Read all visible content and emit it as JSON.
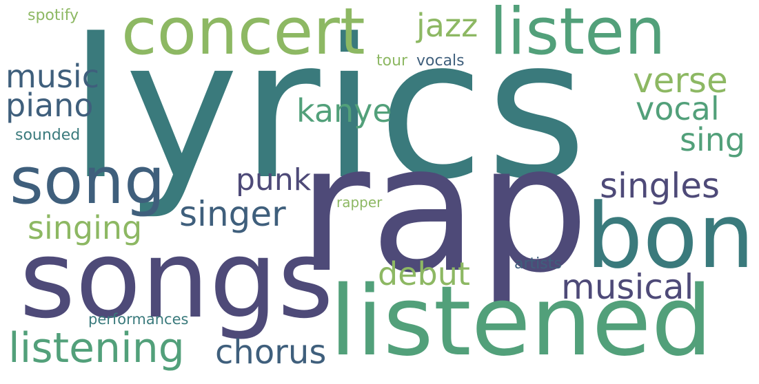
{
  "word_cloud": {
    "background": "#ffffff",
    "words": [
      {
        "key": "lyrics",
        "text": "lyrics",
        "color": "#3a7a7c"
      },
      {
        "key": "rap",
        "text": "rap",
        "color": "#4e4a78"
      },
      {
        "key": "songs",
        "text": "songs",
        "color": "#4e4a78"
      },
      {
        "key": "listened",
        "text": "listened",
        "color": "#52a07a"
      },
      {
        "key": "bon",
        "text": "bon",
        "color": "#3a7a7c"
      },
      {
        "key": "concert",
        "text": "concert",
        "color": "#8db863"
      },
      {
        "key": "listen",
        "text": "listen",
        "color": "#52a07a"
      },
      {
        "key": "song",
        "text": "song",
        "color": "#3f5f7c"
      },
      {
        "key": "listening",
        "text": "listening",
        "color": "#52a07a"
      },
      {
        "key": "chorus",
        "text": "chorus",
        "color": "#3f5f7c"
      },
      {
        "key": "singles",
        "text": "singles",
        "color": "#4e4a78"
      },
      {
        "key": "musical",
        "text": "musical",
        "color": "#4e4a78"
      },
      {
        "key": "singer",
        "text": "singer",
        "color": "#3f5f7c"
      },
      {
        "key": "verse",
        "text": "verse",
        "color": "#8db863"
      },
      {
        "key": "vocal",
        "text": "vocal",
        "color": "#52a07a"
      },
      {
        "key": "music",
        "text": "music",
        "color": "#3f5f7c"
      },
      {
        "key": "piano",
        "text": "piano",
        "color": "#3f5f7c"
      },
      {
        "key": "kanye",
        "text": "kanye",
        "color": "#52a07a"
      },
      {
        "key": "jazz",
        "text": "jazz",
        "color": "#8db863"
      },
      {
        "key": "sing",
        "text": "sing",
        "color": "#52a07a"
      },
      {
        "key": "singing",
        "text": "singing",
        "color": "#8db863"
      },
      {
        "key": "debut",
        "text": "debut",
        "color": "#8db863"
      },
      {
        "key": "punk",
        "text": "punk",
        "color": "#4e4a78"
      },
      {
        "key": "spotify",
        "text": "spotify",
        "color": "#8db863"
      },
      {
        "key": "sounded",
        "text": "sounded",
        "color": "#3a7a7c"
      },
      {
        "key": "tour",
        "text": "tour",
        "color": "#8db863"
      },
      {
        "key": "vocals",
        "text": "vocals",
        "color": "#3f5f7c"
      },
      {
        "key": "rapper",
        "text": "rapper",
        "color": "#8db863"
      },
      {
        "key": "artists",
        "text": "artists",
        "color": "#3f5f7c"
      },
      {
        "key": "performances",
        "text": "performances",
        "color": "#3a7a7c"
      }
    ]
  }
}
